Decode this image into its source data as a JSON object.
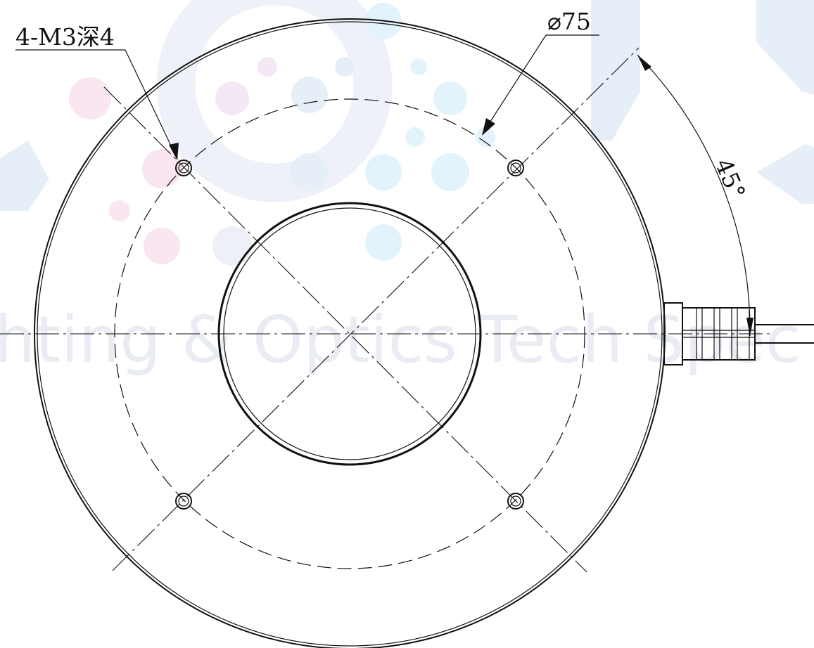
{
  "watermark": {
    "text": "hting & Optics Tech Spec",
    "color": "#e9ecf3",
    "dot_colors": [
      "#f9e6f0",
      "#e6eef8",
      "#e3f3fb"
    ]
  },
  "drawing": {
    "hole_callout": "4-M3深4",
    "diameter_label": "⌀75",
    "angle_label": "45°",
    "line_color": "#111111"
  }
}
